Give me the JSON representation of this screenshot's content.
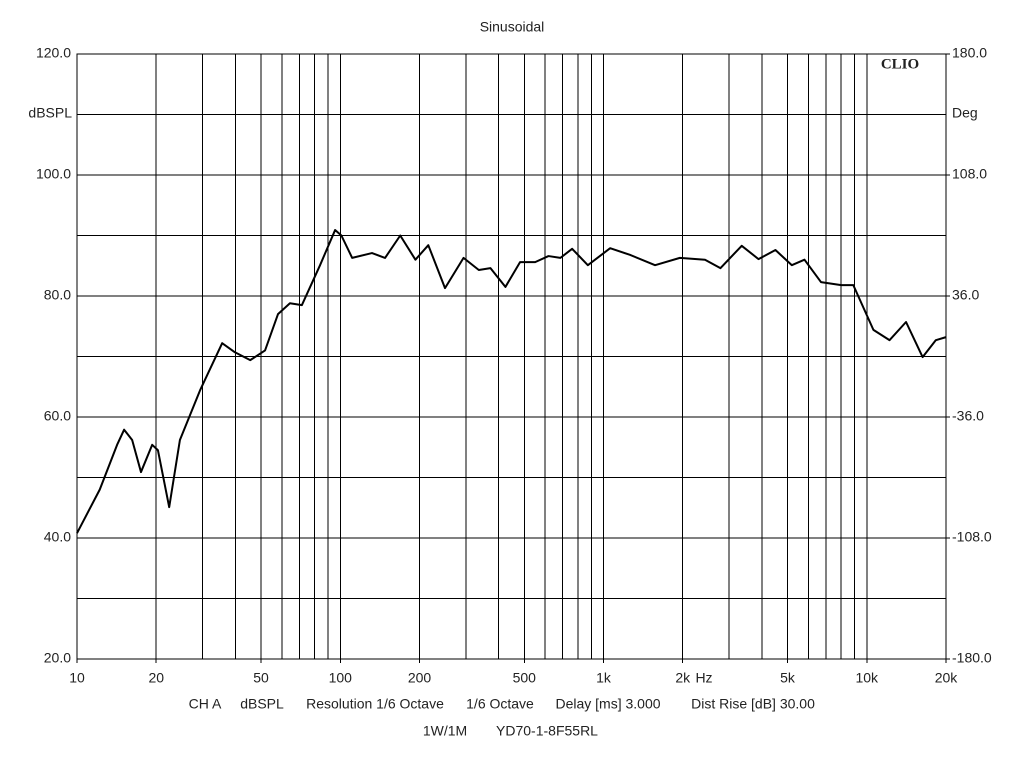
{
  "chart_data": {
    "type": "line",
    "title": "Sinusoidal",
    "ylabel": "dBSPL",
    "y2label": "Deg",
    "xunit": "Hz",
    "brand": "CLIO",
    "footer": [
      "CH A",
      "dBSPL",
      "Resolution 1/6 Octave",
      "1/6 Octave",
      "Delay [ms] 3.000",
      "Dist Rise [dB] 30.00"
    ],
    "footer2": [
      "1W/1M",
      "YD70-1-8F55RL"
    ],
    "xscale": "log",
    "grid": true,
    "xlim": [
      10,
      20000
    ],
    "ylim": [
      20,
      120
    ],
    "y2lim": [
      -180,
      180
    ],
    "xticks": [
      10,
      20,
      50,
      100,
      200,
      500,
      {
        "value": 1000,
        "label": "1k"
      },
      {
        "value": 2000,
        "label": "2k"
      },
      {
        "value": 5000,
        "label": "5k"
      },
      {
        "value": 10000,
        "label": "10k"
      },
      {
        "value": 20000,
        "label": "20k"
      }
    ],
    "xgrid": [
      20,
      30,
      40,
      50,
      60,
      70,
      80,
      90,
      100,
      200,
      300,
      400,
      500,
      600,
      700,
      800,
      900,
      1000,
      2000,
      3000,
      4000,
      5000,
      6000,
      7000,
      8000,
      9000,
      10000
    ],
    "yticks": [
      {
        "value": 20,
        "label": "20.0"
      },
      {
        "value": 40,
        "label": "40.0"
      },
      {
        "value": 60,
        "label": "60.0"
      },
      {
        "value": 80,
        "label": "80.0"
      },
      {
        "value": 100,
        "label": "100.0"
      },
      {
        "value": 120,
        "label": "120.0"
      }
    ],
    "ygrid": [
      30,
      50,
      70,
      90,
      110
    ],
    "y2ticks": [
      {
        "value": -180,
        "label": "-180.0"
      },
      {
        "value": -108,
        "label": "-108.0"
      },
      {
        "value": -36,
        "label": "-36.0"
      },
      {
        "value": 36,
        "label": "36.0"
      },
      {
        "value": 108,
        "label": "108.0"
      },
      {
        "value": 180,
        "label": "180.0"
      }
    ],
    "x": [
      10,
      12.2,
      14.2,
      15.1,
      16.2,
      17.5,
      19.3,
      20.3,
      22.4,
      24.6,
      29.4,
      35.6,
      39.8,
      45.5,
      51.8,
      58,
      64.4,
      71.5,
      83.8,
      95.6,
      101,
      111,
      132,
      148,
      169,
      193,
      216,
      250,
      294,
      336,
      372,
      424,
      482,
      550,
      618,
      686,
      760,
      872,
      1060,
      1260,
      1570,
      1950,
      2430,
      2780,
      3350,
      3880,
      4500,
      5190,
      5800,
      6700,
      8000,
      8890,
      10600,
      12200,
      14100,
      16300,
      18300,
      20000
    ],
    "series": [
      {
        "name": "dBSPL",
        "color": "#000000",
        "values": [
          40.8,
          48,
          55.4,
          57.9,
          56.2,
          50.9,
          55.4,
          54.5,
          45.1,
          56.2,
          64.5,
          72.2,
          70.7,
          69.4,
          71,
          77,
          78.8,
          78.5,
          85.1,
          90.9,
          90,
          86.3,
          87.1,
          86.3,
          90,
          86,
          88.4,
          81.3,
          86.3,
          84.3,
          84.6,
          81.5,
          85.6,
          85.6,
          86.6,
          86.3,
          87.8,
          85.1,
          87.9,
          86.8,
          85.1,
          86.3,
          86,
          84.6,
          88.3,
          86.1,
          87.6,
          85.1,
          86,
          82.3,
          81.8,
          81.8,
          74.4,
          72.7,
          75.7,
          69.9,
          72.7,
          73.2
        ]
      }
    ]
  }
}
